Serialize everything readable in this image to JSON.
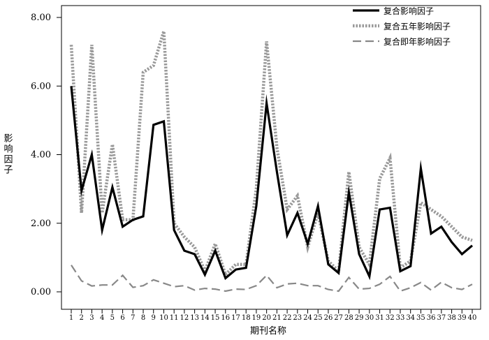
{
  "chart_data": {
    "type": "line",
    "xlabel": "期刊名称",
    "ylabel": "影响因子",
    "ylim": [
      0,
      8
    ],
    "y_ticks": [
      "0.00",
      "2.00",
      "4.00",
      "6.00",
      "8.00"
    ],
    "y_tick_values": [
      0,
      2,
      4,
      6,
      8
    ],
    "categories": [
      "1",
      "2",
      "3",
      "4",
      "5",
      "6",
      "7",
      "8",
      "9",
      "10",
      "11",
      "12",
      "13",
      "14",
      "15",
      "16",
      "17",
      "18",
      "19",
      "20",
      "21",
      "22",
      "23",
      "24",
      "25",
      "26",
      "27",
      "28",
      "29",
      "30",
      "31",
      "32",
      "33",
      "34",
      "35",
      "36",
      "37",
      "38",
      "39",
      "40"
    ],
    "legend_position": "top-right",
    "grid": false,
    "series": [
      {
        "name": "复合影响因子",
        "style": "solid",
        "color": "#000000",
        "values": [
          6.0,
          2.95,
          4.0,
          1.8,
          3.05,
          1.9,
          2.1,
          2.2,
          4.87,
          4.97,
          1.8,
          1.2,
          1.1,
          0.5,
          1.2,
          0.4,
          0.65,
          0.7,
          2.5,
          5.5,
          3.5,
          1.65,
          2.3,
          1.4,
          2.5,
          0.8,
          0.55,
          2.9,
          1.1,
          0.45,
          2.4,
          2.45,
          0.6,
          0.75,
          3.6,
          1.7,
          1.9,
          1.45,
          1.1,
          1.35
        ]
      },
      {
        "name": "复合五年影响因子",
        "style": "dotted",
        "color": "#999999",
        "values": [
          7.2,
          2.3,
          7.2,
          2.3,
          4.3,
          2.1,
          2.1,
          6.4,
          6.6,
          7.6,
          2.0,
          1.6,
          1.3,
          0.6,
          1.4,
          0.5,
          0.8,
          0.8,
          3.0,
          7.3,
          4.2,
          2.4,
          2.8,
          1.3,
          2.3,
          0.9,
          0.6,
          3.5,
          1.3,
          0.8,
          3.3,
          3.9,
          0.7,
          0.9,
          2.6,
          2.4,
          2.2,
          1.9,
          1.6,
          1.5
        ]
      },
      {
        "name": "复合即年影响因子",
        "style": "dashed",
        "color": "#888888",
        "values": [
          0.78,
          0.32,
          0.17,
          0.2,
          0.2,
          0.48,
          0.13,
          0.18,
          0.35,
          0.25,
          0.15,
          0.18,
          0.05,
          0.1,
          0.08,
          0.02,
          0.08,
          0.07,
          0.18,
          0.48,
          0.12,
          0.23,
          0.25,
          0.18,
          0.18,
          0.07,
          0.02,
          0.42,
          0.08,
          0.1,
          0.22,
          0.45,
          0.02,
          0.12,
          0.27,
          0.05,
          0.28,
          0.12,
          0.07,
          0.22
        ]
      }
    ]
  }
}
